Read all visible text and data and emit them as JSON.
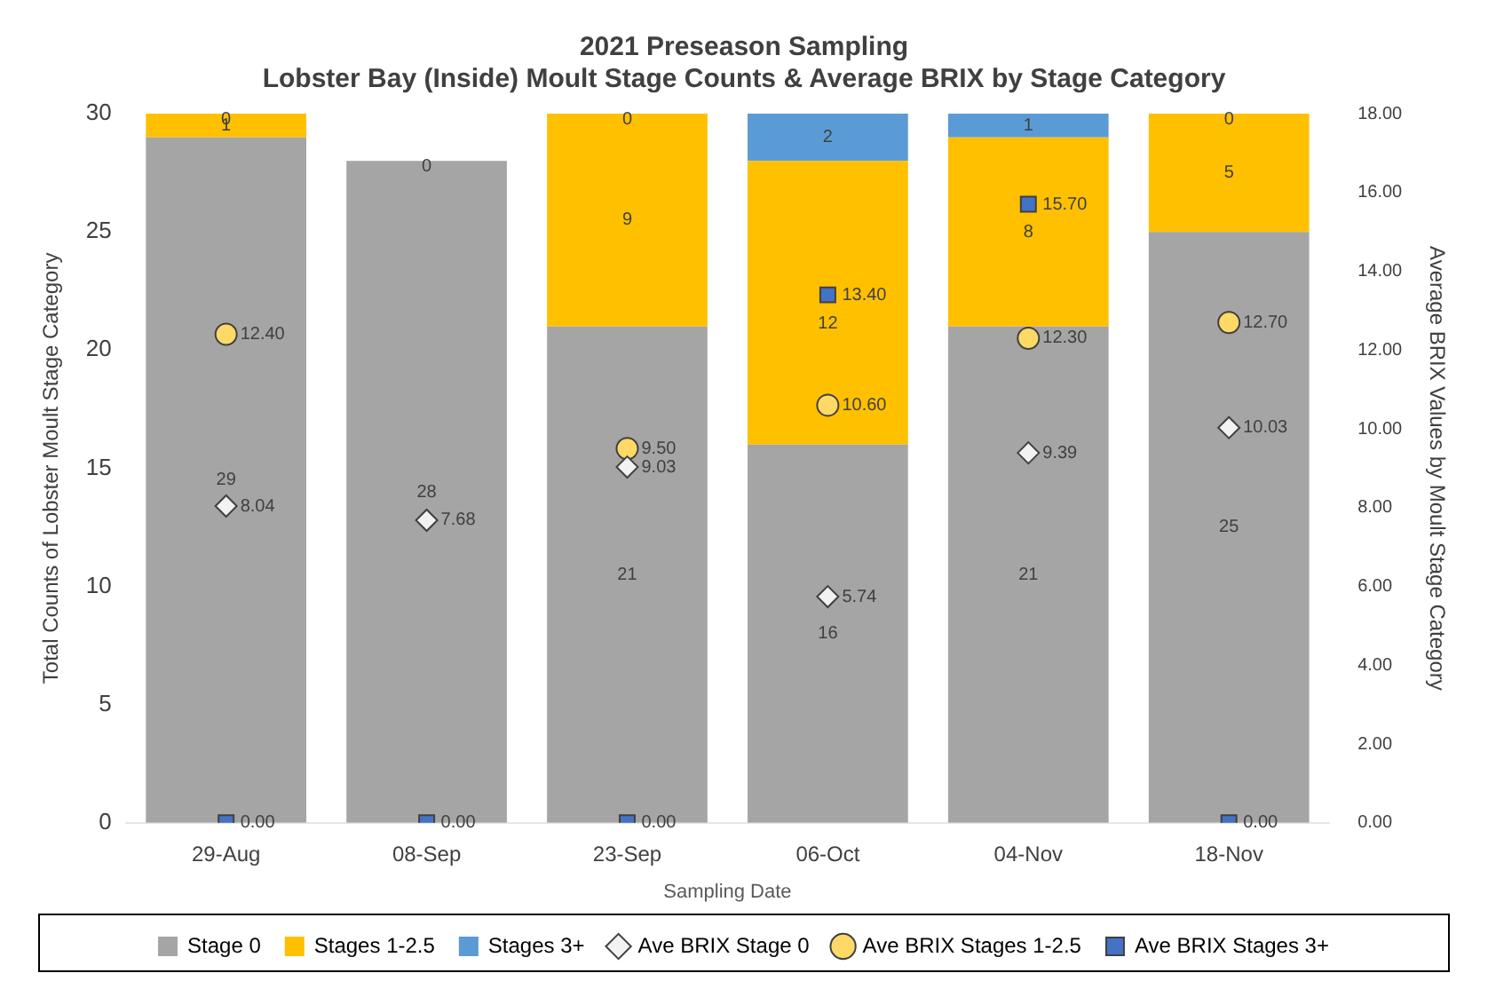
{
  "chart_data": {
    "type": "bar",
    "title": "2021 Preseason Sampling",
    "subtitle": "Lobster Bay (Inside) Moult Stage Counts & Average BRIX by Stage Category",
    "xlabel": "Sampling Date",
    "ylabel": "Total Counts of Lobster Moult Stage Category",
    "y2label": "Average BRIX Values by Moult Stage Category",
    "categories": [
      "29-Aug",
      "08-Sep",
      "23-Sep",
      "06-Oct",
      "04-Nov",
      "18-Nov"
    ],
    "stacked": true,
    "data_labels": true,
    "grid": false,
    "legend": "bottom",
    "ylim": [
      0,
      30
    ],
    "yticks": [
      0,
      5,
      10,
      15,
      20,
      25,
      30
    ],
    "y2lim": [
      0,
      18
    ],
    "y2ticks": [
      {
        "value": 0,
        "label": "0.00"
      },
      {
        "value": 2,
        "label": "2.00"
      },
      {
        "value": 4,
        "label": "4.00"
      },
      {
        "value": 6,
        "label": "6.00"
      },
      {
        "value": 8,
        "label": "8.00"
      },
      {
        "value": 10,
        "label": "10.00"
      },
      {
        "value": 12,
        "label": "12.00"
      },
      {
        "value": 14,
        "label": "14.00"
      },
      {
        "value": 16,
        "label": "16.00"
      },
      {
        "value": 18,
        "label": "18.00"
      }
    ],
    "series": [
      {
        "name": "Stage 0",
        "type": "bar",
        "color": "#a5a5a5",
        "values": [
          29,
          28,
          21,
          16,
          21,
          25
        ]
      },
      {
        "name": "Stages 1-2.5",
        "type": "bar",
        "color": "#ffc000",
        "values": [
          1,
          0,
          9,
          12,
          8,
          5
        ]
      },
      {
        "name": "Stages 3+",
        "type": "bar",
        "color": "#5b9bd5",
        "values": [
          0,
          null,
          0,
          2,
          1,
          0
        ]
      },
      {
        "name": "Ave BRIX Stage 0",
        "type": "scatter",
        "axis": "y2",
        "marker": "diamond",
        "color": "#f2f2f2",
        "values": [
          8.04,
          7.68,
          9.03,
          5.74,
          9.39,
          10.03
        ],
        "value_labels": [
          "8.04",
          "7.68",
          "9.03",
          "5.74",
          "9.39",
          "10.03"
        ]
      },
      {
        "name": "Ave BRIX Stages 1-2.5",
        "type": "scatter",
        "axis": "y2",
        "marker": "circle",
        "color": "#ffd966",
        "values": [
          12.4,
          null,
          9.5,
          10.6,
          12.3,
          12.7
        ],
        "value_labels": [
          "12.40",
          null,
          "9.50",
          "10.60",
          "12.30",
          "12.70"
        ]
      },
      {
        "name": "Ave BRIX Stages 3+",
        "type": "scatter",
        "axis": "y2",
        "marker": "square",
        "color": "#4472c4",
        "values": [
          0,
          0,
          0,
          13.4,
          15.7,
          0
        ],
        "value_labels": [
          "0.00",
          "0.00",
          "0.00",
          "13.40",
          "15.70",
          "0.00"
        ]
      }
    ]
  }
}
